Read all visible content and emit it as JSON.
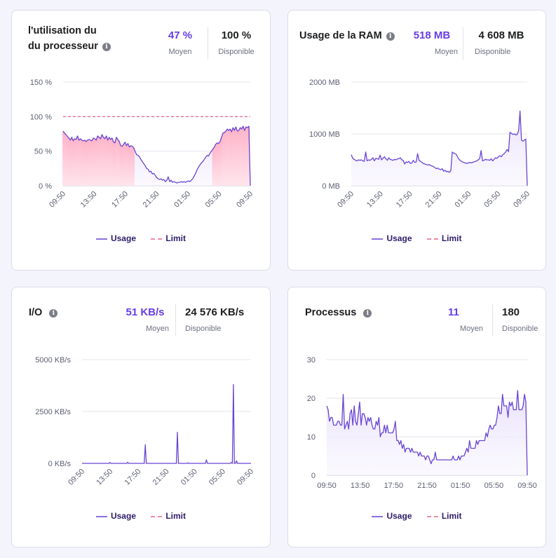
{
  "colors": {
    "accent": "#673de6",
    "line": "#6a45d3",
    "area_fill": "#efeafd",
    "over_fill": "#ffc7d6",
    "limit": "#e0577f",
    "grid": "#e5e5ee"
  },
  "legend": {
    "usage": "Usage",
    "limit": "Limit"
  },
  "cards": {
    "cpu": {
      "title_line1": "l'utilisation du",
      "title_line2": "du processeur",
      "info_icon": "info-icon",
      "average_value": "47 %",
      "average_label": "Moyen",
      "available_value": "100 %",
      "available_label": "Disponible"
    },
    "ram": {
      "title": "Usage de la RAM",
      "info_icon": "info-icon",
      "average_value": "518 MB",
      "average_label": "Moyen",
      "available_value": "4 608 MB",
      "available_label": "Disponible"
    },
    "io": {
      "title": "I/O",
      "info_icon": "info-icon",
      "average_value": "51 KB/s",
      "average_label": "Moyen",
      "available_value": "24 576 KB/s",
      "available_label": "Disponible"
    },
    "proc": {
      "title": "Processus",
      "info_icon": "info-icon",
      "average_value": "11",
      "average_label": "Moyen",
      "available_value": "180",
      "available_label": "Disponible"
    }
  },
  "chart_data": [
    {
      "id": "cpu",
      "type": "area",
      "title": "l'utilisation du du processeur",
      "xlabel": "",
      "ylabel": "",
      "x_tick_labels": [
        "09:50",
        "13:50",
        "17:50",
        "21:50",
        "01:50",
        "05:50",
        "09:50"
      ],
      "x_tick_rotated": true,
      "y_ticks": [
        0,
        50,
        100,
        150
      ],
      "y_tick_labels": [
        "0 %",
        "50 %",
        "100 %",
        "150 %"
      ],
      "ylim": [
        0,
        150
      ],
      "grid": true,
      "legend": "bottom-center",
      "highlight_above": 50,
      "limit": 100,
      "series": [
        {
          "name": "Usage",
          "values": [
            79,
            76,
            74,
            71,
            69,
            66,
            70,
            65,
            68,
            67,
            72,
            66,
            68,
            66,
            65,
            66,
            64,
            66,
            67,
            66,
            65,
            69,
            68,
            66,
            72,
            70,
            68,
            74,
            70,
            68,
            72,
            66,
            70,
            67,
            69,
            63,
            62,
            70,
            67,
            64,
            58,
            57,
            60,
            63,
            58,
            61,
            56,
            58,
            57,
            55,
            50,
            45,
            44,
            42,
            38,
            35,
            32,
            29,
            25,
            24,
            20,
            21,
            17,
            18,
            15,
            12,
            10,
            9,
            10,
            8,
            9,
            6,
            8,
            13,
            6,
            8,
            5,
            6,
            5,
            4,
            5,
            5,
            6,
            5,
            6,
            5,
            6,
            7,
            6,
            8,
            10,
            14,
            18,
            23,
            27,
            30,
            33,
            35,
            38,
            41,
            44,
            43,
            47,
            50,
            53,
            56,
            60,
            62,
            61,
            64,
            70,
            76,
            77,
            79,
            82,
            80,
            82,
            78,
            84,
            80,
            85,
            79,
            80,
            84,
            82,
            86,
            80,
            85,
            84,
            86,
            0
          ]
        },
        {
          "name": "Limit",
          "style": "dashed",
          "values": [
            100
          ]
        }
      ]
    },
    {
      "id": "ram",
      "type": "area",
      "title": "Usage de la RAM",
      "xlabel": "",
      "ylabel": "",
      "x_tick_labels": [
        "09:50",
        "13:50",
        "17:50",
        "21:50",
        "01:50",
        "05:50",
        "09:50"
      ],
      "x_tick_rotated": true,
      "y_ticks": [
        0,
        1000,
        2000
      ],
      "y_tick_labels": [
        "0 MB",
        "1000 MB",
        "2000 MB"
      ],
      "ylim": [
        0,
        2000
      ],
      "grid": true,
      "legend": "bottom-center",
      "series": [
        {
          "name": "Usage",
          "values": [
            600,
            530,
            510,
            490,
            480,
            500,
            490,
            500,
            480,
            470,
            650,
            480,
            500,
            490,
            510,
            540,
            480,
            530,
            520,
            510,
            590,
            500,
            530,
            560,
            520,
            490,
            540,
            510,
            500,
            490,
            510,
            500,
            520,
            520,
            540,
            500,
            490,
            420,
            460,
            450,
            470,
            430,
            440,
            490,
            450,
            460,
            620,
            490,
            470,
            450,
            430,
            420,
            410,
            400,
            410,
            390,
            380,
            370,
            350,
            330,
            340,
            320,
            310,
            330,
            280,
            300,
            270,
            280,
            260,
            290,
            650,
            630,
            620,
            600,
            540,
            500,
            480,
            460,
            450,
            440,
            430,
            440,
            450,
            440,
            450,
            460,
            470,
            480,
            500,
            520,
            680,
            480,
            490,
            510,
            500,
            500,
            490,
            520,
            480,
            510,
            540,
            530,
            560,
            580,
            560,
            600,
            620,
            650,
            700,
            660,
            1030,
            1010,
            990,
            1000,
            980,
            990,
            1060,
            1440,
            880,
            860,
            880,
            900,
            0
          ]
        },
        {
          "name": "Limit",
          "style": "dashed",
          "values": []
        }
      ]
    },
    {
      "id": "io",
      "type": "line",
      "title": "I/O",
      "xlabel": "",
      "ylabel": "",
      "x_tick_labels": [
        "09:50",
        "13:50",
        "17:50",
        "21:50",
        "01:50",
        "05:50",
        "09:50"
      ],
      "x_tick_rotated": true,
      "y_ticks": [
        0,
        2500,
        5000
      ],
      "y_tick_labels": [
        "0 KB/s",
        "2500 KB/s",
        "5000 KB/s"
      ],
      "ylim": [
        0,
        5000
      ],
      "grid": true,
      "legend": "bottom-center",
      "series": [
        {
          "name": "Usage",
          "values": [
            0,
            0,
            0,
            0,
            0,
            0,
            0,
            0,
            0,
            0,
            0,
            0,
            0,
            0,
            0,
            0,
            0,
            0,
            0,
            0,
            0,
            0,
            0,
            0,
            0,
            0,
            0,
            40,
            0,
            0,
            0,
            0,
            0,
            0,
            0,
            0,
            0,
            0,
            0,
            0,
            0,
            0,
            0,
            0,
            50,
            0,
            0,
            0,
            0,
            0,
            0,
            0,
            0,
            0,
            0,
            0,
            0,
            0,
            0,
            0,
            0,
            900,
            0,
            0,
            0,
            0,
            0,
            0,
            0,
            0,
            0,
            0,
            0,
            0,
            0,
            0,
            0,
            0,
            0,
            0,
            0,
            0,
            0,
            0,
            0,
            0,
            0,
            0,
            0,
            0,
            0,
            0,
            1500,
            0,
            0,
            0,
            0,
            0,
            0,
            0,
            0,
            0,
            20,
            0,
            0,
            0,
            0,
            0,
            0,
            0,
            0,
            0,
            0,
            0,
            0,
            0,
            0,
            0,
            0,
            0,
            170,
            0,
            0,
            0,
            0,
            0,
            0,
            0,
            0,
            0,
            0,
            0,
            0,
            0,
            0,
            0,
            0,
            0,
            0,
            0,
            0,
            0,
            0,
            0,
            40,
            0,
            3800,
            0,
            0,
            120,
            0,
            0,
            0,
            0,
            0,
            0,
            0,
            0,
            0,
            0,
            0,
            0,
            0,
            0
          ]
        },
        {
          "name": "Limit",
          "style": "dashed",
          "values": []
        }
      ]
    },
    {
      "id": "proc",
      "type": "area",
      "title": "Processus",
      "xlabel": "",
      "ylabel": "",
      "x_tick_labels": [
        "09:50",
        "13:50",
        "17:50",
        "21:50",
        "01:50",
        "05:50",
        "09:50"
      ],
      "x_tick_rotated": false,
      "y_ticks": [
        0,
        10,
        20,
        30
      ],
      "y_tick_labels": [
        "0",
        "10",
        "20",
        "30"
      ],
      "ylim": [
        0,
        30
      ],
      "grid": true,
      "legend": "bottom-center",
      "series": [
        {
          "name": "Usage",
          "values": [
            18,
            17,
            14,
            15,
            15,
            13,
            13,
            13,
            14,
            14,
            13,
            13,
            21,
            12,
            13,
            14,
            12,
            16,
            17,
            13,
            18,
            14,
            13,
            16,
            19,
            13,
            16,
            16,
            15,
            13,
            15,
            14,
            15,
            13,
            12,
            12,
            14,
            13,
            15,
            10,
            11,
            11,
            13,
            11,
            13,
            11,
            11,
            11,
            11,
            12,
            14,
            9,
            9,
            8,
            9,
            7,
            8,
            6,
            7,
            7,
            7,
            6,
            7,
            6,
            6,
            6,
            6,
            5,
            6,
            5,
            5,
            5,
            4,
            5,
            5,
            4,
            3,
            4,
            4,
            6,
            4,
            4,
            4,
            4,
            4,
            4,
            4,
            4,
            4,
            4,
            4,
            4,
            5,
            4,
            4,
            4,
            5,
            4,
            5,
            5,
            5,
            6,
            7,
            6,
            9,
            7,
            7,
            7,
            7,
            9,
            8,
            9,
            9,
            9,
            9,
            9,
            11,
            10,
            12,
            13,
            12,
            12,
            13,
            13,
            15,
            18,
            16,
            16,
            21,
            18,
            18,
            18,
            15,
            19,
            18,
            19,
            17,
            17,
            17,
            22,
            17,
            17,
            17,
            18,
            21,
            19,
            0
          ]
        },
        {
          "name": "Limit",
          "style": "dashed",
          "values": []
        }
      ]
    }
  ]
}
